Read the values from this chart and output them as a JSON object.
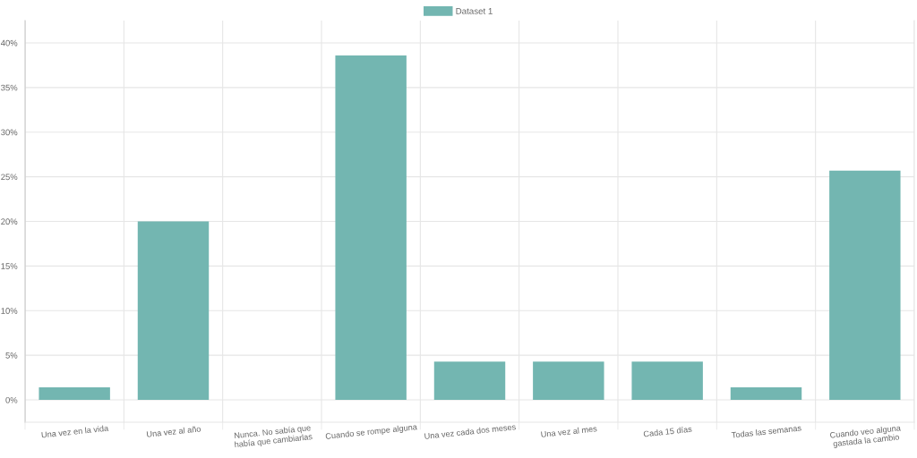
{
  "chart_data": {
    "type": "bar",
    "categories": [
      "Una vez en la vida",
      "Una vez al año",
      "Nunca. No sabía que había que cambiarlas",
      "Cuando se rompe alguna",
      "Una vez cada dos meses",
      "Una vez al mes",
      "Cada 15 días",
      "Todas las semanas",
      "Cuando veo alguna gastada la cambio"
    ],
    "series": [
      {
        "name": "Dataset 1",
        "color": "#73b6b1",
        "values": [
          1.4,
          20,
          0,
          38.6,
          4.3,
          4.3,
          4.3,
          1.4,
          25.7
        ]
      }
    ],
    "ylim": [
      -2.5,
      42.5
    ],
    "yticks": [
      {
        "value": 0,
        "label": "0%"
      },
      {
        "value": 5,
        "label": "5%"
      },
      {
        "value": 10,
        "label": "10%"
      },
      {
        "value": 15,
        "label": "15%"
      },
      {
        "value": 20,
        "label": "20%"
      },
      {
        "value": 25,
        "label": "25%"
      },
      {
        "value": 30,
        "label": "30%"
      },
      {
        "value": 35,
        "label": "35%"
      },
      {
        "value": 40,
        "label": "40%"
      }
    ],
    "grid": true,
    "legend": "top"
  }
}
